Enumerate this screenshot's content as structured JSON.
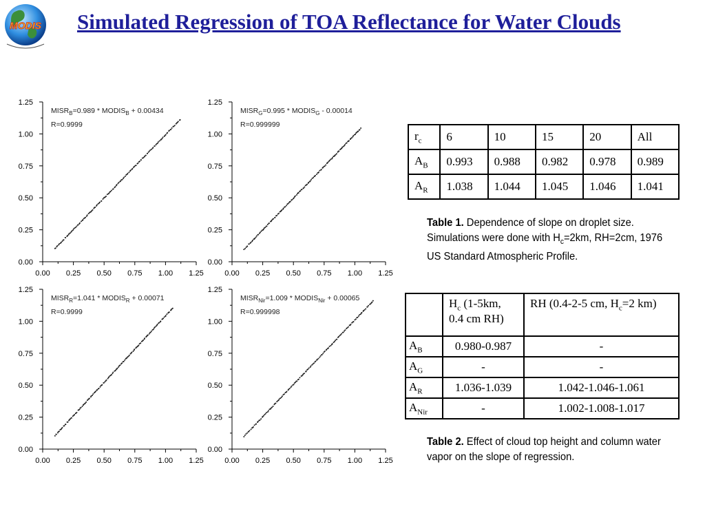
{
  "title": "Simulated Regression of TOA Reflectance for Water Clouds",
  "logo": {
    "text": "MODIS",
    "icon": "modis-globe-logo"
  },
  "chart_data": [
    {
      "type": "scatter",
      "name": "blue",
      "eq_prefix": "MISR",
      "eq_sub1": "B",
      "eq_mid": "=0.989 * MODIS",
      "eq_sub2": "B",
      "eq_suffix": " + 0.00434",
      "r_text": "R=0.9999",
      "slope": 0.989,
      "intercept": 0.00434,
      "x_range": [
        0.1,
        1.12
      ],
      "xlim": [
        0,
        1.25
      ],
      "ylim": [
        0,
        1.25
      ],
      "xticks": [
        "0.00",
        "0.25",
        "0.50",
        "0.75",
        "1.00",
        "1.25"
      ],
      "yticks": [
        "0.00",
        "0.25",
        "0.50",
        "0.75",
        "1.00",
        "1.25"
      ]
    },
    {
      "type": "scatter",
      "name": "green",
      "eq_prefix": "MISR",
      "eq_sub1": "G",
      "eq_mid": "=0.995 * MODIS",
      "eq_sub2": "G",
      "eq_suffix": " - 0.00014",
      "r_text": "R=0.999999",
      "slope": 0.995,
      "intercept": -0.00014,
      "x_range": [
        0.1,
        1.05
      ],
      "xlim": [
        0,
        1.25
      ],
      "ylim": [
        0,
        1.25
      ],
      "xticks": [
        "0.00",
        "0.25",
        "0.50",
        "0.75",
        "1.00",
        "1.25"
      ],
      "yticks": [
        "0.00",
        "0.25",
        "0.50",
        "0.75",
        "1.00",
        "1.25"
      ]
    },
    {
      "type": "scatter",
      "name": "red",
      "eq_prefix": "MISR",
      "eq_sub1": "R",
      "eq_mid": "=1.041 * MODIS",
      "eq_sub2": "R",
      "eq_suffix": " + 0.00071",
      "r_text": "R=0.9999",
      "slope": 1.041,
      "intercept": 0.00071,
      "x_range": [
        0.1,
        1.06
      ],
      "xlim": [
        0,
        1.25
      ],
      "ylim": [
        0,
        1.25
      ],
      "xticks": [
        "0.00",
        "0.25",
        "0.50",
        "0.75",
        "1.00",
        "1.25"
      ],
      "yticks": [
        "0.00",
        "0.25",
        "0.50",
        "0.75",
        "1.00",
        "1.25"
      ]
    },
    {
      "type": "scatter",
      "name": "nir",
      "eq_prefix": "MISR",
      "eq_sub1": "Nir",
      "eq_mid": "=1.009 * MODIS",
      "eq_sub2": "Nir",
      "eq_suffix": " + 0.00065",
      "r_text": "R=0.999998",
      "slope": 1.009,
      "intercept": 0.00065,
      "x_range": [
        0.1,
        1.15
      ],
      "xlim": [
        0,
        1.25
      ],
      "ylim": [
        0,
        1.25
      ],
      "xticks": [
        "0.00",
        "0.25",
        "0.50",
        "0.75",
        "1.00",
        "1.25"
      ],
      "yticks": [
        "0.00",
        "0.25",
        "0.50",
        "0.75",
        "1.00",
        "1.25"
      ]
    }
  ],
  "table1": {
    "header": {
      "label_main": "r",
      "label_sub": "c",
      "cols": [
        "6",
        "10",
        "15",
        "20",
        "All"
      ]
    },
    "rows": [
      {
        "label_main": "A",
        "label_sub": "B",
        "values": [
          "0.993",
          "0.988",
          "0.982",
          "0.978",
          "0.989"
        ]
      },
      {
        "label_main": "A",
        "label_sub": "R",
        "values": [
          "1.038",
          "1.044",
          "1.045",
          "1.046",
          "1.041"
        ]
      }
    ]
  },
  "caption1": {
    "bold": "Table 1.",
    "text_a": " Dependence of slope on droplet size. Simulations were done with H",
    "sub": "c",
    "text_b": "=2km, RH=2cm, 1976 US Standard Atmospheric Profile."
  },
  "table2": {
    "header": {
      "col1_a": "H",
      "col1_sub": "c",
      "col1_b": " (1-5km, 0.4 cm RH)",
      "col2_a": "RH (0.4-2-5 cm, H",
      "col2_sub": "c",
      "col2_b": "=2 km)"
    },
    "rows": [
      {
        "label_main": "A",
        "label_sub": "B",
        "c1": "0.980-0.987",
        "c2": "-"
      },
      {
        "label_main": "A",
        "label_sub": "G",
        "c1": "-",
        "c2": "-"
      },
      {
        "label_main": "A",
        "label_sub": "R",
        "c1": "1.036-1.039",
        "c2": "1.042-1.046-1.061"
      },
      {
        "label_main": "A",
        "label_sub": "Nir",
        "c1": "-",
        "c2": "1.002-1.008-1.017"
      }
    ]
  },
  "caption2": {
    "bold": "Table 2.",
    "text": " Effect of cloud top height and column water vapor on the slope of regression."
  }
}
